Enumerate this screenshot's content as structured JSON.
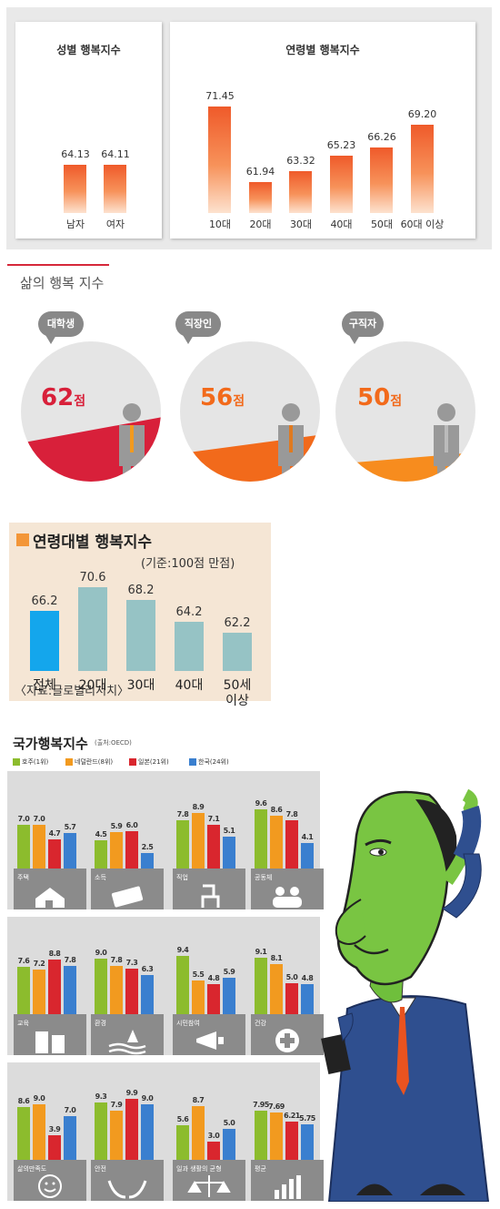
{
  "gender_chart": {
    "title": "성별 행복지수",
    "chart_data": {
      "type": "bar",
      "categories": [
        "남자",
        "여자"
      ],
      "values": [
        64.13,
        64.11
      ],
      "value_labels": [
        "64.13",
        "64.11"
      ]
    }
  },
  "age_chart": {
    "title": "연령별 행복지수",
    "chart_data": {
      "type": "bar",
      "categories": [
        "10대",
        "20대",
        "30대",
        "40대",
        "50대",
        "60대 이상"
      ],
      "values": [
        71.45,
        61.94,
        63.32,
        65.23,
        66.26,
        69.2
      ],
      "value_labels": [
        "71.45",
        "61.94",
        "63.32",
        "65.23",
        "66.26",
        "69.20"
      ]
    }
  },
  "life_section": {
    "title": "삶의 행복 지수",
    "chart_data": [
      {
        "type": "pie",
        "label": "대학생",
        "value": 62,
        "display": "62",
        "unit": "점",
        "color": "#d8203a"
      },
      {
        "type": "pie",
        "label": "직장인",
        "value": 56,
        "display": "56",
        "unit": "점",
        "color": "#f26a1b"
      },
      {
        "type": "pie",
        "label": "구직자",
        "value": 50,
        "display": "50",
        "unit": "점",
        "color": "#f78c1e"
      }
    ]
  },
  "age_group_chart": {
    "title": "연령대별 행복지수",
    "note": "(기준:100점 만점)",
    "source": "〈자료:글로벌리서치〉",
    "chart_data": {
      "type": "bar",
      "categories": [
        "전체",
        "20대",
        "30대",
        "40대",
        "50세\n이상"
      ],
      "values": [
        66.2,
        70.6,
        68.2,
        64.2,
        62.2
      ],
      "value_labels": [
        "66.2",
        "70.6",
        "68.2",
        "64.2",
        "62.2"
      ],
      "colors": [
        "#14a6ec",
        "#96c3c5",
        "#96c3c5",
        "#96c3c5",
        "#96c3c5"
      ]
    }
  },
  "oecd_chart": {
    "title": "국가행복지수",
    "source": "(출처:OECD)",
    "legend": [
      {
        "label": "호주(1위)",
        "color": "#8cbc2d"
      },
      {
        "label": "네덜란드(8위)",
        "color": "#f29a1f"
      },
      {
        "label": "일본(21위)",
        "color": "#d9262e"
      },
      {
        "label": "한국(24위)",
        "color": "#3a7fcf"
      }
    ],
    "chart_data": [
      {
        "type": "bar",
        "category": "주택",
        "values": [
          7.0,
          7.0,
          4.7,
          5.7
        ],
        "labels": [
          "7.0",
          "7.0",
          "4.7",
          "5.7"
        ],
        "icon": "house-icon"
      },
      {
        "type": "bar",
        "category": "소득",
        "values": [
          4.5,
          5.9,
          6.0,
          2.5
        ],
        "labels": [
          "4.5",
          "5.9",
          "6.0",
          "2.5"
        ],
        "icon": "money-icon"
      },
      {
        "type": "bar",
        "category": "직업",
        "values": [
          7.8,
          8.9,
          7.1,
          5.1
        ],
        "labels": [
          "7.8",
          "8.9",
          "7.1",
          "5.1"
        ],
        "icon": "chair-icon"
      },
      {
        "type": "bar",
        "category": "공동체",
        "values": [
          9.6,
          8.6,
          7.8,
          4.1
        ],
        "labels": [
          "9.6",
          "8.6",
          "7.8",
          "4.1"
        ],
        "icon": "people-icon"
      },
      {
        "type": "bar",
        "category": "교육",
        "values": [
          7.6,
          7.2,
          8.8,
          7.8
        ],
        "labels": [
          "7.6",
          "7.2",
          "8.8",
          "7.8"
        ],
        "icon": "book-icon"
      },
      {
        "type": "bar",
        "category": "환경",
        "values": [
          9.0,
          7.8,
          7.3,
          6.3
        ],
        "labels": [
          "9.0",
          "7.8",
          "7.3",
          "6.3"
        ],
        "icon": "tree-icon"
      },
      {
        "type": "bar",
        "category": "시민참여",
        "values": [
          9.4,
          5.5,
          4.8,
          5.9
        ],
        "labels": [
          "9.4",
          "5.5",
          "4.8",
          "5.9"
        ],
        "icon": "megaphone-icon"
      },
      {
        "type": "bar",
        "category": "건강",
        "values": [
          9.1,
          8.1,
          5.0,
          4.8
        ],
        "labels": [
          "9.1",
          "8.1",
          "5.0",
          "4.8"
        ],
        "icon": "cross-icon"
      },
      {
        "type": "bar",
        "category": "삶의만족도",
        "values": [
          8.6,
          9.0,
          3.9,
          7.0
        ],
        "labels": [
          "8.6",
          "9.0",
          "3.9",
          "7.0"
        ],
        "icon": "smile-icon"
      },
      {
        "type": "bar",
        "category": "안전",
        "values": [
          9.3,
          7.9,
          9.9,
          9.0
        ],
        "labels": [
          "9.3",
          "7.9",
          "9.9",
          "9.0"
        ],
        "icon": "hands-icon"
      },
      {
        "type": "bar",
        "category": "일과 생활의 균형",
        "values": [
          5.6,
          8.7,
          3.0,
          5.0
        ],
        "labels": [
          "5.6",
          "8.7",
          "3.0",
          "5.0"
        ],
        "icon": "scale-icon"
      },
      {
        "type": "bar",
        "category": "평균",
        "values": [
          7.95,
          7.69,
          6.21,
          5.75
        ],
        "labels": [
          "7.95",
          "7.69",
          "6.21",
          "5.75"
        ],
        "icon": "barchart-icon"
      }
    ]
  }
}
